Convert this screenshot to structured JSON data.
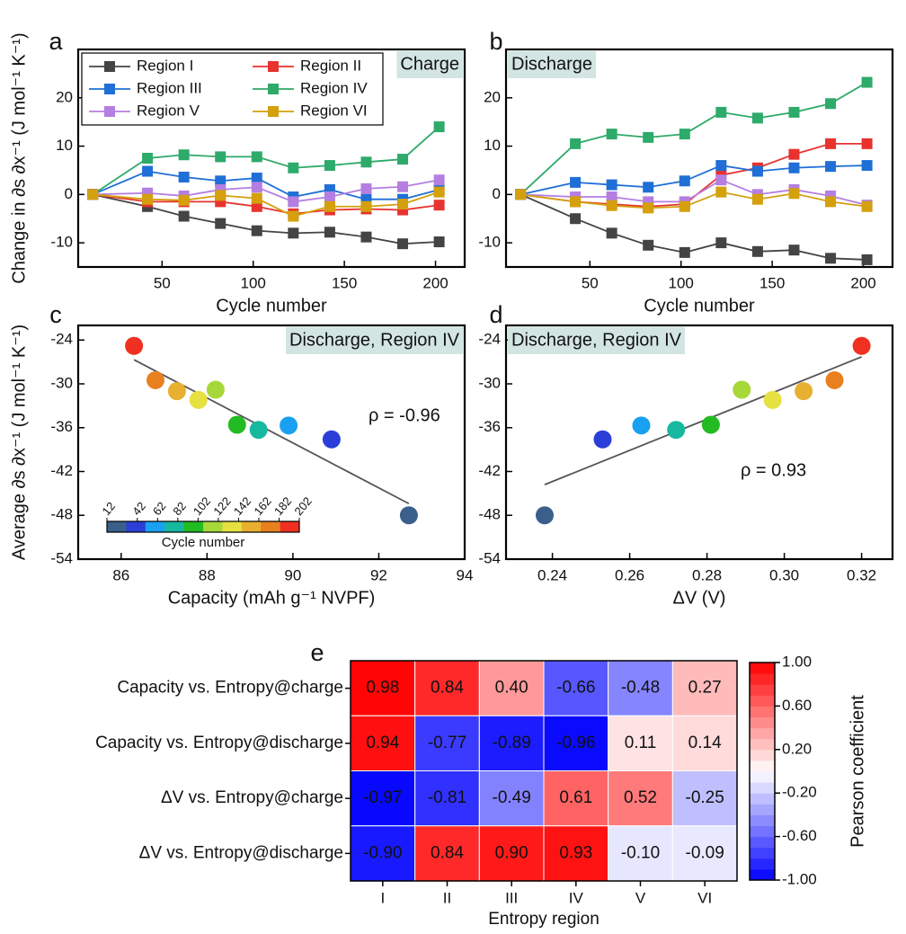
{
  "chart_data": [
    {
      "panel": "a",
      "type": "line",
      "ylabel": "Change in ∂s ∂x⁻¹ (J mol⁻¹ K⁻¹)",
      "xlabel": "Cycle number",
      "annotation": "Charge",
      "x": [
        12,
        42,
        62,
        82,
        102,
        122,
        142,
        162,
        182,
        202
      ],
      "xlim": [
        4,
        216
      ],
      "xticks": [
        50,
        100,
        150,
        200
      ],
      "ylim": [
        -15,
        30
      ],
      "yticks": [
        -10,
        0,
        10,
        20
      ],
      "legend": "upper left",
      "series": [
        {
          "name": "Region I",
          "color": "#444444",
          "values": [
            0,
            -2.5,
            -4.5,
            -6,
            -7.5,
            -8,
            -7.8,
            -8.8,
            -10.2,
            -9.8
          ]
        },
        {
          "name": "Region II",
          "color": "#e8322f",
          "values": [
            0,
            -1.5,
            -1.5,
            -1.5,
            -2.5,
            -4,
            -3.2,
            -3,
            -3.2,
            -2.2
          ]
        },
        {
          "name": "Region III",
          "color": "#1f6fd6",
          "values": [
            0,
            4.8,
            3.6,
            2.8,
            3.4,
            -0.5,
            1,
            -1,
            -1,
            1
          ]
        },
        {
          "name": "Region IV",
          "color": "#2eaa6a",
          "values": [
            0,
            7.5,
            8.2,
            7.8,
            7.8,
            5.5,
            6,
            6.7,
            7.3,
            14
          ]
        },
        {
          "name": "Region V",
          "color": "#b47fe0",
          "values": [
            0,
            0.3,
            -0.3,
            1,
            1.5,
            -1.5,
            -0.5,
            1.2,
            1.6,
            3
          ]
        },
        {
          "name": "Region VI",
          "color": "#d4a00d",
          "values": [
            0,
            -1,
            -1.2,
            -0.2,
            -0.8,
            -4.5,
            -2.5,
            -2.5,
            -2,
            0.5
          ]
        }
      ]
    },
    {
      "panel": "b",
      "type": "line",
      "xlabel": "Cycle number",
      "annotation": "Discharge",
      "x": [
        12,
        42,
        62,
        82,
        102,
        122,
        142,
        162,
        182,
        202
      ],
      "xlim": [
        4,
        216
      ],
      "xticks": [
        50,
        100,
        150,
        200
      ],
      "ylim": [
        -15,
        30
      ],
      "yticks": [
        -10,
        0,
        10,
        20
      ],
      "series": [
        {
          "color": "#444444",
          "values": [
            0,
            -5,
            -8,
            -10.5,
            -12,
            -10,
            -11.8,
            -11.5,
            -13.2,
            -13.5
          ]
        },
        {
          "color": "#e8322f",
          "values": [
            0,
            -1.5,
            -2,
            -2.5,
            -2,
            4,
            5.5,
            8.3,
            10.5,
            10.5
          ]
        },
        {
          "color": "#1f6fd6",
          "values": [
            0,
            2.5,
            2,
            1.5,
            2.8,
            6,
            4.8,
            5.5,
            5.8,
            6
          ]
        },
        {
          "color": "#2eaa6a",
          "values": [
            0,
            10.5,
            12.5,
            11.8,
            12.5,
            17,
            15.8,
            17,
            18.8,
            23.2
          ]
        },
        {
          "color": "#b47fe0",
          "values": [
            0,
            -0.5,
            -0.5,
            -1.5,
            -1.5,
            3,
            0,
            1,
            -0.3,
            -2.2
          ]
        },
        {
          "color": "#d4a00d",
          "values": [
            0,
            -1.5,
            -2.3,
            -2.8,
            -2.5,
            0.5,
            -1,
            0.2,
            -1.5,
            -2.5
          ]
        }
      ]
    },
    {
      "panel": "c",
      "type": "scatter",
      "ylabel": "Average ∂s ∂x⁻¹ (J mol⁻¹ K⁻¹)",
      "xlabel": "Capacity (mAh g⁻¹ NVPF)",
      "annotation": "Discharge, Region IV",
      "rho": "ρ = -0.96",
      "x": [
        92.7,
        90.9,
        89.9,
        89.2,
        88.7,
        88.2,
        87.8,
        87.3,
        86.8,
        86.3
      ],
      "values": [
        -48,
        -37.6,
        -35.7,
        -36.3,
        -35.6,
        -30.8,
        -32.2,
        -31,
        -29.5,
        -24.8
      ],
      "colors": [
        "#3a5f8a",
        "#2b3fd8",
        "#1aa0f0",
        "#17b8a0",
        "#22bb22",
        "#a6d83a",
        "#e6e040",
        "#e8b030",
        "#e88020",
        "#f03020"
      ],
      "trend": {
        "x": [
          86.3,
          92.7
        ],
        "y": [
          -26.7,
          -46.4
        ],
        "color": "#555555"
      },
      "xlim": [
        85,
        94
      ],
      "xticks": [
        86,
        88,
        90,
        92,
        94
      ],
      "ylim": [
        -54,
        -22
      ],
      "yticks": [
        -54,
        -48,
        -42,
        -36,
        -30,
        -24
      ],
      "colorbar": {
        "label": "Cycle number",
        "ticks": [
          12,
          42,
          62,
          82,
          102,
          122,
          142,
          162,
          182,
          202
        ],
        "colors": [
          "#3a5f8a",
          "#2b3fd8",
          "#1aa0f0",
          "#17b8a0",
          "#22bb22",
          "#a6d83a",
          "#e6e040",
          "#e8b030",
          "#e88020",
          "#f03020"
        ]
      }
    },
    {
      "panel": "d",
      "type": "scatter",
      "xlabel": "ΔV (V)",
      "annotation": "Discharge, Region IV",
      "rho": "ρ = 0.93",
      "x": [
        0.238,
        0.253,
        0.263,
        0.272,
        0.281,
        0.289,
        0.297,
        0.305,
        0.313,
        0.32
      ],
      "values": [
        -48,
        -37.6,
        -35.7,
        -36.3,
        -35.6,
        -30.8,
        -32.2,
        -31,
        -29.5,
        -24.8
      ],
      "colors": [
        "#3a5f8a",
        "#2b3fd8",
        "#1aa0f0",
        "#17b8a0",
        "#22bb22",
        "#a6d83a",
        "#e6e040",
        "#e8b030",
        "#e88020",
        "#f03020"
      ],
      "trend": {
        "x": [
          0.238,
          0.32
        ],
        "y": [
          -43.8,
          -26.3
        ],
        "color": "#555555"
      },
      "xlim": [
        0.228,
        0.328
      ],
      "xticks": [
        0.24,
        0.26,
        0.28,
        {
          "value": 0.3,
          "label": "0.30"
        },
        0.32
      ],
      "ylim": [
        -54,
        -22
      ],
      "yticks": [
        -54,
        -48,
        -42,
        -36,
        -30,
        -24
      ]
    },
    {
      "panel": "e",
      "type": "heatmap",
      "rows": [
        "Capacity vs. Entropy@charge",
        "Capacity vs. Entropy@discharge",
        "ΔV vs. Entropy@charge",
        "ΔV vs. Entropy@discharge"
      ],
      "columns": [
        "I",
        "II",
        "III",
        "IV",
        "V",
        "VI"
      ],
      "values": [
        [
          0.98,
          0.84,
          0.4,
          -0.66,
          -0.48,
          0.27
        ],
        [
          0.94,
          -0.77,
          -0.89,
          -0.96,
          0.11,
          0.14
        ],
        [
          -0.97,
          -0.81,
          -0.49,
          0.61,
          0.52,
          -0.25
        ],
        [
          -0.9,
          0.84,
          0.9,
          0.93,
          -0.1,
          -0.09
        ]
      ],
      "value_labels": [
        [
          "0.98",
          "0.84",
          "0.40",
          "-0.66",
          "-0.48",
          "0.27"
        ],
        [
          "0.94",
          "-0.77",
          "-0.89",
          "-0.96",
          "0.11",
          "0.14"
        ],
        [
          "-0.97",
          "-0.81",
          "-0.49",
          "0.61",
          "0.52",
          "-0.25"
        ],
        [
          "-0.90",
          "0.84",
          "0.90",
          "0.93",
          "-0.10",
          "-0.09"
        ]
      ],
      "xlabel": "Entropy region",
      "colorbar": {
        "label": "Pearson coefficient",
        "lim": [
          -1,
          1
        ],
        "ticks": [
          {
            "value": 1,
            "label": "1.00"
          },
          {
            "value": 0.6,
            "label": "0.60"
          },
          {
            "value": 0.2,
            "label": "0.20"
          },
          {
            "value": -0.2,
            "label": "-0.20"
          },
          {
            "value": -0.6,
            "label": "-0.60"
          },
          {
            "value": -1,
            "label": "-1.00"
          }
        ]
      }
    }
  ]
}
